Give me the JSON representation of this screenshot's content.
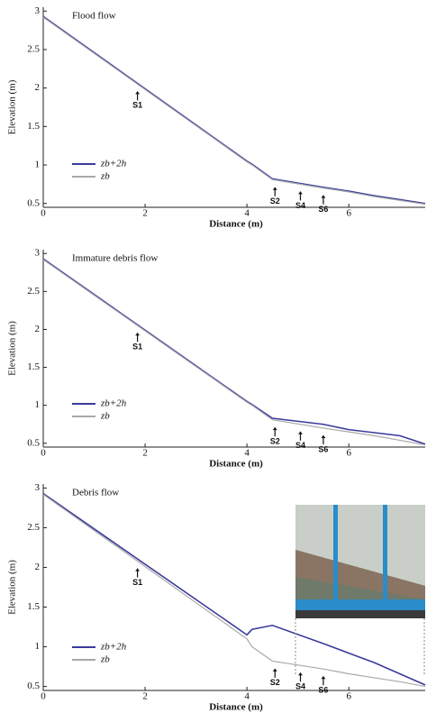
{
  "chart_data": [
    {
      "type": "line",
      "title": "Flood flow",
      "xlabel": "Distance (m)",
      "ylabel": "Elevation (m)",
      "x": [
        0,
        4,
        4.1,
        4.5,
        5.5,
        6,
        6.5,
        7,
        7.5
      ],
      "series": [
        {
          "name": "zb+2h",
          "color": "#3b3b9c",
          "values": [
            2.93,
            1.05,
            1.01,
            0.82,
            0.71,
            0.66,
            0.6,
            0.55,
            0.5
          ]
        },
        {
          "name": "zb",
          "color": "#a8a8a8",
          "values": [
            2.92,
            1.04,
            1.0,
            0.81,
            0.7,
            0.65,
            0.59,
            0.54,
            0.49
          ]
        }
      ],
      "annotations": [
        {
          "label": "S1",
          "x": 1.85
        },
        {
          "label": "S2",
          "x": 4.55
        },
        {
          "label": "S4",
          "x": 5.05
        },
        {
          "label": "S6",
          "x": 5.5
        }
      ],
      "xlim": [
        0,
        7.5
      ],
      "ylim": [
        0.45,
        3.05
      ],
      "xticks": [
        0,
        2,
        4,
        6
      ],
      "yticks": [
        0.5,
        1,
        1.5,
        2,
        2.5,
        3
      ],
      "legend": "lower left"
    },
    {
      "type": "line",
      "title": "Immature debris flow",
      "xlabel": "Distance (m)",
      "ylabel": "Elevation (m)",
      "x": [
        0,
        4,
        4.1,
        4.5,
        5.5,
        6,
        6.5,
        7,
        7.5
      ],
      "series": [
        {
          "name": "zb+2h",
          "color": "#3b3b9c",
          "values": [
            2.93,
            1.05,
            1.01,
            0.83,
            0.75,
            0.68,
            0.64,
            0.6,
            0.49
          ]
        },
        {
          "name": "zb",
          "color": "#a8a8a8",
          "values": [
            2.92,
            1.04,
            1.0,
            0.81,
            0.7,
            0.65,
            0.6,
            0.54,
            0.48
          ]
        }
      ],
      "annotations": [
        {
          "label": "S1",
          "x": 1.85
        },
        {
          "label": "S2",
          "x": 4.55
        },
        {
          "label": "S4",
          "x": 5.05
        },
        {
          "label": "S6",
          "x": 5.5
        }
      ],
      "xlim": [
        0,
        7.5
      ],
      "ylim": [
        0.45,
        3.05
      ],
      "xticks": [
        0,
        2,
        4,
        6
      ],
      "yticks": [
        0.5,
        1,
        1.5,
        2,
        2.5,
        3
      ],
      "legend": "lower left"
    },
    {
      "type": "line",
      "title": "Debris flow",
      "xlabel": "Distance (m)",
      "ylabel": "Elevation (m)",
      "x": [
        0,
        4,
        4.1,
        4.5,
        5.5,
        6,
        6.5,
        7,
        7.5
      ],
      "series": [
        {
          "name": "zb+2h",
          "color": "#3b3b9c",
          "values": [
            2.93,
            1.15,
            1.22,
            1.27,
            1.04,
            0.92,
            0.8,
            0.66,
            0.52
          ]
        },
        {
          "name": "zb",
          "color": "#a8a8a8",
          "values": [
            2.92,
            1.1,
            1.0,
            0.82,
            0.72,
            0.66,
            0.61,
            0.56,
            0.5
          ]
        }
      ],
      "annotations": [
        {
          "label": "S1",
          "x": 1.85
        },
        {
          "label": "S2",
          "x": 4.55
        },
        {
          "label": "S4",
          "x": 5.05
        },
        {
          "label": "S6",
          "x": 5.5
        }
      ],
      "xlim": [
        0,
        7.5
      ],
      "ylim": [
        0.45,
        3.05
      ],
      "xticks": [
        0,
        2,
        4,
        6
      ],
      "yticks": [
        0.5,
        1,
        1.5,
        2,
        2.5,
        3
      ],
      "legend": "lower left"
    }
  ]
}
